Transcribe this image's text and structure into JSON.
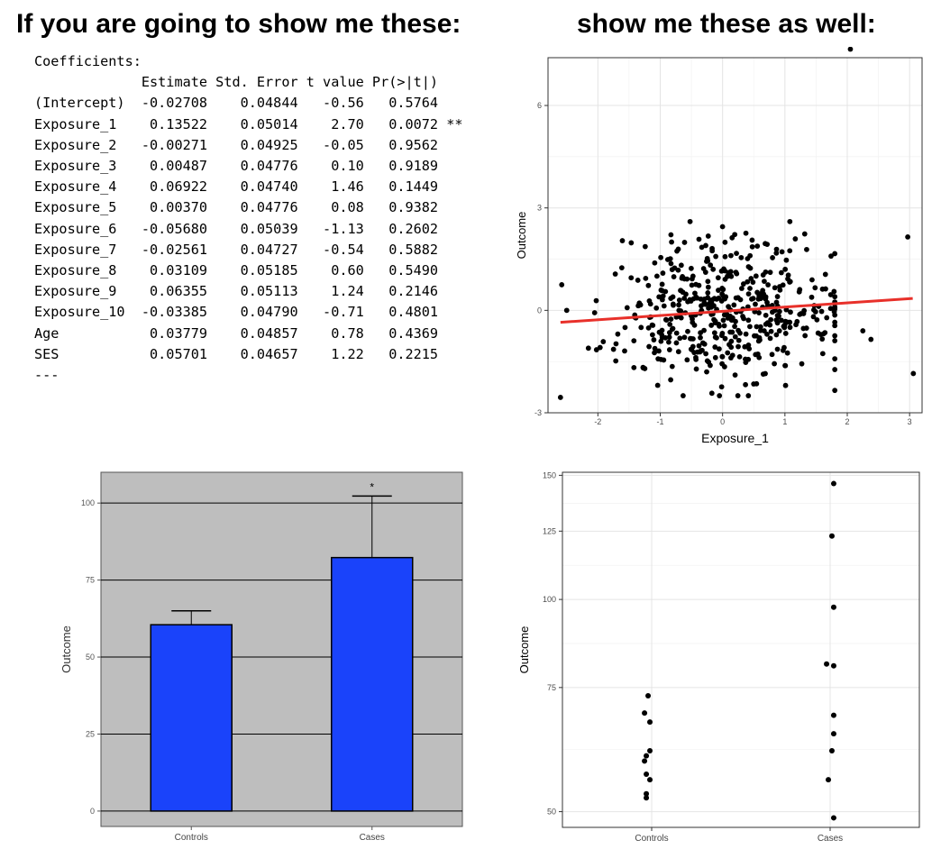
{
  "headings": {
    "left": "If you are going to show me these:",
    "right": "show me these as well:"
  },
  "coefficients": {
    "title": "Coefficients:",
    "columns": [
      "Estimate",
      "Std. Error",
      "t value",
      "Pr(>|t|)"
    ],
    "rows": [
      {
        "name": "(Intercept)",
        "estimate": "-0.02708",
        "se": "0.04844",
        "t": "-0.56",
        "p": "0.5764",
        "sig": ""
      },
      {
        "name": "Exposure_1",
        "estimate": "0.13522",
        "se": "0.05014",
        "t": "2.70",
        "p": "0.0072",
        "sig": "**"
      },
      {
        "name": "Exposure_2",
        "estimate": "-0.00271",
        "se": "0.04925",
        "t": "-0.05",
        "p": "0.9562",
        "sig": ""
      },
      {
        "name": "Exposure_3",
        "estimate": "0.00487",
        "se": "0.04776",
        "t": "0.10",
        "p": "0.9189",
        "sig": ""
      },
      {
        "name": "Exposure_4",
        "estimate": "0.06922",
        "se": "0.04740",
        "t": "1.46",
        "p": "0.1449",
        "sig": ""
      },
      {
        "name": "Exposure_5",
        "estimate": "0.00370",
        "se": "0.04776",
        "t": "0.08",
        "p": "0.9382",
        "sig": ""
      },
      {
        "name": "Exposure_6",
        "estimate": "-0.05680",
        "se": "0.05039",
        "t": "-1.13",
        "p": "0.2602",
        "sig": ""
      },
      {
        "name": "Exposure_7",
        "estimate": "-0.02561",
        "se": "0.04727",
        "t": "-0.54",
        "p": "0.5882",
        "sig": ""
      },
      {
        "name": "Exposure_8",
        "estimate": "0.03109",
        "se": "0.05185",
        "t": "0.60",
        "p": "0.5490",
        "sig": ""
      },
      {
        "name": "Exposure_9",
        "estimate": "0.06355",
        "se": "0.05113",
        "t": "1.24",
        "p": "0.2146",
        "sig": ""
      },
      {
        "name": "Exposure_10",
        "estimate": "-0.03385",
        "se": "0.04790",
        "t": "-0.71",
        "p": "0.4801",
        "sig": ""
      },
      {
        "name": "Age",
        "estimate": "0.03779",
        "se": "0.04857",
        "t": "0.78",
        "p": "0.4369",
        "sig": ""
      },
      {
        "name": "SES",
        "estimate": "0.05701",
        "se": "0.04657",
        "t": "1.22",
        "p": "0.2215",
        "sig": ""
      }
    ],
    "footer": "---"
  },
  "chart_data": [
    {
      "type": "scatter",
      "xlabel": "Exposure_1",
      "ylabel": "Outcome",
      "xlim": [
        -2.8,
        3.2
      ],
      "ylim": [
        -3.0,
        7.4
      ],
      "xticks": [
        -2,
        -1,
        0,
        1,
        2,
        3
      ],
      "yticks": [
        -3,
        0,
        3,
        6
      ],
      "grid": true,
      "trend_line": {
        "color": "#e8302a",
        "x": [
          -2.6,
          3.05
        ],
        "y": [
          -0.35,
          0.35
        ]
      },
      "outliers": [
        {
          "x": 2.05,
          "y": 7.65
        },
        {
          "x": 2.97,
          "y": 2.15
        },
        {
          "x": 3.06,
          "y": -1.85
        },
        {
          "x": -2.6,
          "y": -2.55
        },
        {
          "x": -2.58,
          "y": 0.75
        },
        {
          "x": -2.5,
          "y": 0.0
        },
        {
          "x": 2.25,
          "y": -0.6
        },
        {
          "x": 2.38,
          "y": -0.85
        }
      ],
      "cloud": {
        "n": 480,
        "x_mean": 0.0,
        "x_sd": 0.95,
        "y_mean": 0.0,
        "y_sd": 1.0,
        "x_range": [
          -2.35,
          1.8
        ],
        "y_range": [
          -2.5,
          2.6
        ]
      }
    },
    {
      "type": "bar",
      "categories": [
        "Controls",
        "Cases"
      ],
      "values": [
        60.5,
        82.3
      ],
      "error_upper": [
        65.0,
        102.3
      ],
      "ylabel": "Outcome",
      "ylim": [
        -5,
        110
      ],
      "yticks": [
        0,
        25,
        50,
        75,
        100
      ],
      "bar_color": "#1a43fa",
      "background_color": "#bebebe",
      "annotations": [
        {
          "category": "Cases",
          "text": "*"
        }
      ]
    },
    {
      "type": "scatter",
      "categories": [
        "Controls",
        "Cases"
      ],
      "ylabel": "Outcome",
      "ylim": [
        47.5,
        151.5
      ],
      "yticks": [
        50,
        75,
        100,
        125,
        150
      ],
      "scale": "log",
      "grid": true,
      "points": {
        "Controls": [
          {
            "dx": -0.02,
            "y": 73
          },
          {
            "dx": -0.04,
            "y": 69
          },
          {
            "dx": -0.01,
            "y": 67
          },
          {
            "dx": -0.01,
            "y": 61
          },
          {
            "dx": -0.03,
            "y": 60
          },
          {
            "dx": -0.04,
            "y": 59
          },
          {
            "dx": -0.03,
            "y": 56.5
          },
          {
            "dx": -0.01,
            "y": 55.5
          },
          {
            "dx": -0.03,
            "y": 53
          },
          {
            "dx": -0.03,
            "y": 52.3
          }
        ],
        "Cases": [
          {
            "dx": 0.02,
            "y": 146
          },
          {
            "dx": 0.01,
            "y": 123
          },
          {
            "dx": 0.02,
            "y": 97.5
          },
          {
            "dx": -0.02,
            "y": 81
          },
          {
            "dx": 0.02,
            "y": 80.5
          },
          {
            "dx": 0.02,
            "y": 68.5
          },
          {
            "dx": 0.02,
            "y": 64.5
          },
          {
            "dx": 0.01,
            "y": 61
          },
          {
            "dx": -0.01,
            "y": 55.5
          },
          {
            "dx": 0.02,
            "y": 49
          }
        ]
      }
    }
  ]
}
